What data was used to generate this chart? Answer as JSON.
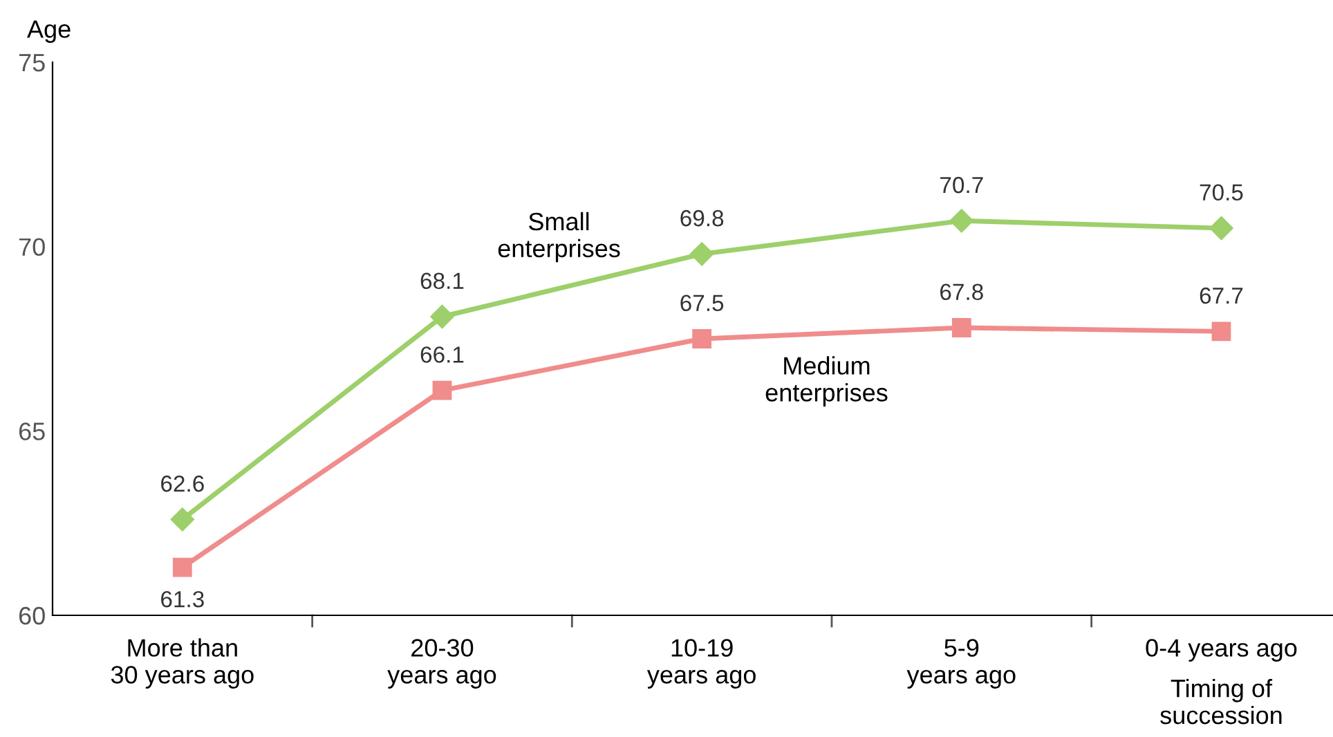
{
  "chart_data": {
    "type": "line",
    "ylabel": "Age",
    "xlabel": "Timing of succession",
    "categories": [
      "More than\n30 years ago",
      "20-30\nyears ago",
      "10-19\nyears ago",
      "5-9\nyears ago",
      "0-4 years ago"
    ],
    "series": [
      {
        "name": "Small enterprises",
        "color": "#9dcf6a",
        "marker": "diamond",
        "values": [
          62.6,
          68.1,
          69.8,
          70.7,
          70.5
        ]
      },
      {
        "name": "Medium enterprises",
        "color": "#f08c8c",
        "marker": "square",
        "values": [
          61.3,
          66.1,
          67.5,
          67.8,
          67.7
        ]
      }
    ],
    "ylim": [
      60,
      75
    ],
    "yticks": [
      60,
      65,
      70,
      75
    ],
    "grid": false,
    "legend": false,
    "data_labels": true,
    "line_style": "solid"
  }
}
